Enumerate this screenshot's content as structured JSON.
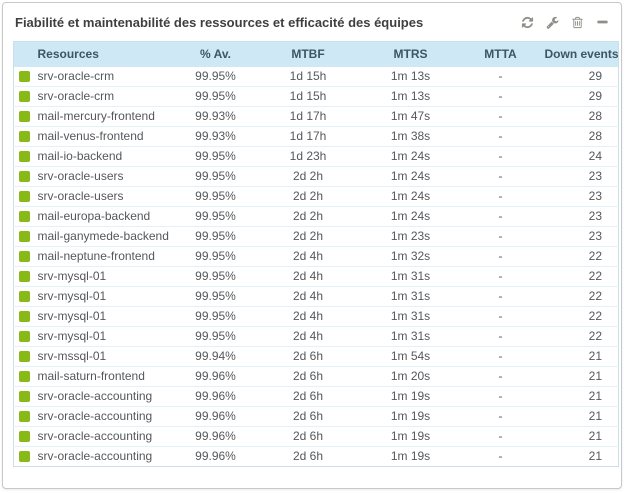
{
  "header": {
    "title": "Fiabilité et maintenabilité des ressources et efficacité des équipes",
    "actions": [
      {
        "name": "refresh",
        "icon": "refresh-icon"
      },
      {
        "name": "configure",
        "icon": "wrench-icon"
      },
      {
        "name": "delete",
        "icon": "trash-icon"
      },
      {
        "name": "collapse",
        "icon": "minus-icon"
      }
    ]
  },
  "table": {
    "columns": [
      "Resources",
      "% Av.",
      "MTBF",
      "MTRS",
      "MTTA",
      "Down events"
    ],
    "rows": [
      {
        "resource": "srv-oracle-crm",
        "availability": "99.95%",
        "mtbf": "1d 15h",
        "mtrs": "1m 13s",
        "mtta": "-",
        "down_events": "29"
      },
      {
        "resource": "srv-oracle-crm",
        "availability": "99.95%",
        "mtbf": "1d 15h",
        "mtrs": "1m 13s",
        "mtta": "-",
        "down_events": "29"
      },
      {
        "resource": "mail-mercury-frontend",
        "availability": "99.93%",
        "mtbf": "1d 17h",
        "mtrs": "1m 47s",
        "mtta": "-",
        "down_events": "28"
      },
      {
        "resource": "mail-venus-frontend",
        "availability": "99.93%",
        "mtbf": "1d 17h",
        "mtrs": "1m 38s",
        "mtta": "-",
        "down_events": "28"
      },
      {
        "resource": "mail-io-backend",
        "availability": "99.95%",
        "mtbf": "1d 23h",
        "mtrs": "1m 24s",
        "mtta": "-",
        "down_events": "24"
      },
      {
        "resource": "srv-oracle-users",
        "availability": "99.95%",
        "mtbf": "2d 2h",
        "mtrs": "1m 24s",
        "mtta": "-",
        "down_events": "23"
      },
      {
        "resource": "srv-oracle-users",
        "availability": "99.95%",
        "mtbf": "2d 2h",
        "mtrs": "1m 24s",
        "mtta": "-",
        "down_events": "23"
      },
      {
        "resource": "mail-europa-backend",
        "availability": "99.95%",
        "mtbf": "2d 2h",
        "mtrs": "1m 24s",
        "mtta": "-",
        "down_events": "23"
      },
      {
        "resource": "mail-ganymede-backend",
        "availability": "99.95%",
        "mtbf": "2d 2h",
        "mtrs": "1m 23s",
        "mtta": "-",
        "down_events": "23"
      },
      {
        "resource": "mail-neptune-frontend",
        "availability": "99.95%",
        "mtbf": "2d 4h",
        "mtrs": "1m 32s",
        "mtta": "-",
        "down_events": "22"
      },
      {
        "resource": "srv-mysql-01",
        "availability": "99.95%",
        "mtbf": "2d 4h",
        "mtrs": "1m 31s",
        "mtta": "-",
        "down_events": "22"
      },
      {
        "resource": "srv-mysql-01",
        "availability": "99.95%",
        "mtbf": "2d 4h",
        "mtrs": "1m 31s",
        "mtta": "-",
        "down_events": "22"
      },
      {
        "resource": "srv-mysql-01",
        "availability": "99.95%",
        "mtbf": "2d 4h",
        "mtrs": "1m 31s",
        "mtta": "-",
        "down_events": "22"
      },
      {
        "resource": "srv-mysql-01",
        "availability": "99.95%",
        "mtbf": "2d 4h",
        "mtrs": "1m 31s",
        "mtta": "-",
        "down_events": "22"
      },
      {
        "resource": "srv-mssql-01",
        "availability": "99.94%",
        "mtbf": "2d 6h",
        "mtrs": "1m 54s",
        "mtta": "-",
        "down_events": "21"
      },
      {
        "resource": "mail-saturn-frontend",
        "availability": "99.96%",
        "mtbf": "2d 6h",
        "mtrs": "1m 20s",
        "mtta": "-",
        "down_events": "21"
      },
      {
        "resource": "srv-oracle-accounting",
        "availability": "99.96%",
        "mtbf": "2d 6h",
        "mtrs": "1m 19s",
        "mtta": "-",
        "down_events": "21"
      },
      {
        "resource": "srv-oracle-accounting",
        "availability": "99.96%",
        "mtbf": "2d 6h",
        "mtrs": "1m 19s",
        "mtta": "-",
        "down_events": "21"
      },
      {
        "resource": "srv-oracle-accounting",
        "availability": "99.96%",
        "mtbf": "2d 6h",
        "mtrs": "1m 19s",
        "mtta": "-",
        "down_events": "21"
      },
      {
        "resource": "srv-oracle-accounting",
        "availability": "99.96%",
        "mtbf": "2d 6h",
        "mtrs": "1m 19s",
        "mtta": "-",
        "down_events": "21"
      }
    ]
  },
  "colors": {
    "status_ok": "#88b917",
    "table_header_bg": "#cfe8f5",
    "table_header_text": "#3d5666",
    "table_border": "#c9dfec",
    "row_border": "#e3f1f9",
    "icon": "#8f8f8a",
    "widget_border": "#c8c8c8"
  }
}
